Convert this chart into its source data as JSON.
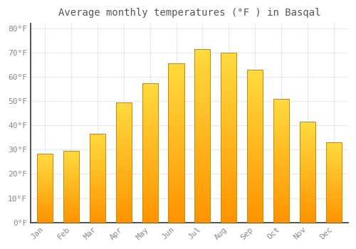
{
  "title": "Average monthly temperatures (°F ) in Basqal",
  "months": [
    "Jan",
    "Feb",
    "Mar",
    "Apr",
    "May",
    "Jun",
    "Jul",
    "Aug",
    "Sep",
    "Oct",
    "Nov",
    "Dec"
  ],
  "values": [
    28.5,
    29.5,
    36.5,
    49.5,
    57.5,
    65.5,
    71.5,
    70.0,
    63.0,
    51.0,
    41.5,
    33.0
  ],
  "bar_color_top": "#FFD060",
  "bar_color_bottom": "#FFA500",
  "bar_edge_color": "#CC8800",
  "background_color": "#FFFFFF",
  "grid_color": "#E8E8E8",
  "ylim": [
    0,
    82
  ],
  "yticks": [
    0,
    10,
    20,
    30,
    40,
    50,
    60,
    70,
    80
  ],
  "title_fontsize": 10,
  "tick_fontsize": 8,
  "text_color": "#888888",
  "title_color": "#555555"
}
